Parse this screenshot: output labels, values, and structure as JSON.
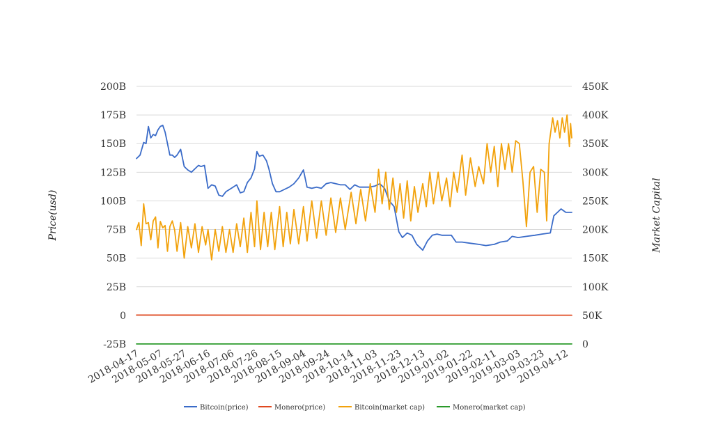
{
  "chart_data": {
    "type": "line",
    "title": "",
    "ylabel_left": "Price(usd)",
    "ylabel_right": "Market Capital",
    "left_axis": {
      "ticks": [
        "-25B",
        "0",
        "25B",
        "50B",
        "75B",
        "100B",
        "125B",
        "150B",
        "175B",
        "200B"
      ],
      "tick_values": [
        -25,
        0,
        25,
        50,
        75,
        100,
        125,
        150,
        175,
        200
      ],
      "ylim": [
        -25,
        200
      ]
    },
    "right_axis": {
      "ticks": [
        "0",
        "50K",
        "100K",
        "150K",
        "200K",
        "250K",
        "300K",
        "350K",
        "400K",
        "450K"
      ],
      "tick_values": [
        0,
        50,
        100,
        150,
        200,
        250,
        300,
        350,
        400,
        450
      ],
      "ylim": [
        0,
        450
      ]
    },
    "x_axis": {
      "tick_labels": [
        "2018-04-17",
        "2018-05-07",
        "2018-05-27",
        "2018-06-16",
        "2018-07-06",
        "2018-07-26",
        "2018-08-15",
        "2018-09-04",
        "2018-09-24",
        "2018-10-14",
        "2018-11-03",
        "2018-11-23",
        "2018-12-13",
        "2019-01-02",
        "2019-01-22",
        "2019-02-11",
        "2019-03-03",
        "2019-03-23",
        "2019-04-12"
      ],
      "start": "2018-04-17",
      "end": "2019-04-17"
    },
    "grid": true,
    "legend_position": "bottom",
    "series": [
      {
        "name": "Bitcoin(price)",
        "axis": "left",
        "color": "#3a6bc8",
        "points": [
          [
            "2018-04-17",
            137
          ],
          [
            "2018-04-20",
            140
          ],
          [
            "2018-04-23",
            151
          ],
          [
            "2018-04-25",
            150
          ],
          [
            "2018-04-27",
            165
          ],
          [
            "2018-04-29",
            155
          ],
          [
            "2018-05-01",
            158
          ],
          [
            "2018-05-03",
            157
          ],
          [
            "2018-05-05",
            162
          ],
          [
            "2018-05-07",
            165
          ],
          [
            "2018-05-09",
            166
          ],
          [
            "2018-05-11",
            160
          ],
          [
            "2018-05-13",
            150
          ],
          [
            "2018-05-15",
            140
          ],
          [
            "2018-05-17",
            140
          ],
          [
            "2018-05-19",
            138
          ],
          [
            "2018-05-21",
            140
          ],
          [
            "2018-05-24",
            145
          ],
          [
            "2018-05-27",
            130
          ],
          [
            "2018-05-30",
            127
          ],
          [
            "2018-06-02",
            125
          ],
          [
            "2018-06-05",
            128
          ],
          [
            "2018-06-08",
            131
          ],
          [
            "2018-06-10",
            130
          ],
          [
            "2018-06-13",
            131
          ],
          [
            "2018-06-16",
            111
          ],
          [
            "2018-06-19",
            114
          ],
          [
            "2018-06-22",
            113
          ],
          [
            "2018-06-25",
            105
          ],
          [
            "2018-06-28",
            104
          ],
          [
            "2018-07-01",
            108
          ],
          [
            "2018-07-04",
            110
          ],
          [
            "2018-07-07",
            112
          ],
          [
            "2018-07-10",
            114
          ],
          [
            "2018-07-13",
            107
          ],
          [
            "2018-07-16",
            108
          ],
          [
            "2018-07-19",
            116
          ],
          [
            "2018-07-22",
            120
          ],
          [
            "2018-07-25",
            128
          ],
          [
            "2018-07-27",
            143
          ],
          [
            "2018-07-29",
            139
          ],
          [
            "2018-08-01",
            140
          ],
          [
            "2018-08-04",
            135
          ],
          [
            "2018-08-06",
            128
          ],
          [
            "2018-08-09",
            115
          ],
          [
            "2018-08-12",
            108
          ],
          [
            "2018-08-15",
            108
          ],
          [
            "2018-08-19",
            110
          ],
          [
            "2018-08-23",
            112
          ],
          [
            "2018-08-27",
            115
          ],
          [
            "2018-08-31",
            120
          ],
          [
            "2018-09-04",
            127
          ],
          [
            "2018-09-07",
            112
          ],
          [
            "2018-09-11",
            111
          ],
          [
            "2018-09-15",
            112
          ],
          [
            "2018-09-19",
            111
          ],
          [
            "2018-09-23",
            115
          ],
          [
            "2018-09-27",
            116
          ],
          [
            "2018-10-01",
            115
          ],
          [
            "2018-10-05",
            114
          ],
          [
            "2018-10-09",
            114
          ],
          [
            "2018-10-13",
            110
          ],
          [
            "2018-10-17",
            114
          ],
          [
            "2018-10-21",
            112
          ],
          [
            "2018-10-25",
            112
          ],
          [
            "2018-10-29",
            112
          ],
          [
            "2018-11-03",
            113
          ],
          [
            "2018-11-07",
            115
          ],
          [
            "2018-11-11",
            111
          ],
          [
            "2018-11-15",
            100
          ],
          [
            "2018-11-19",
            95
          ],
          [
            "2018-11-23",
            73
          ],
          [
            "2018-11-26",
            68
          ],
          [
            "2018-11-30",
            72
          ],
          [
            "2018-12-04",
            70
          ],
          [
            "2018-12-08",
            62
          ],
          [
            "2018-12-13",
            57
          ],
          [
            "2018-12-17",
            65
          ],
          [
            "2018-12-21",
            70
          ],
          [
            "2018-12-25",
            71
          ],
          [
            "2018-12-29",
            70
          ],
          [
            "2019-01-02",
            70
          ],
          [
            "2019-01-06",
            70
          ],
          [
            "2019-01-10",
            64
          ],
          [
            "2019-01-15",
            64
          ],
          [
            "2019-01-22",
            63
          ],
          [
            "2019-01-29",
            62
          ],
          [
            "2019-02-04",
            61
          ],
          [
            "2019-02-11",
            62
          ],
          [
            "2019-02-16",
            64
          ],
          [
            "2019-02-22",
            65
          ],
          [
            "2019-02-26",
            69
          ],
          [
            "2019-03-03",
            68
          ],
          [
            "2019-03-10",
            69
          ],
          [
            "2019-03-17",
            70
          ],
          [
            "2019-03-23",
            71
          ],
          [
            "2019-03-30",
            72
          ],
          [
            "2019-04-02",
            87
          ],
          [
            "2019-04-05",
            90
          ],
          [
            "2019-04-08",
            93
          ],
          [
            "2019-04-12",
            90
          ],
          [
            "2019-04-17",
            90
          ]
        ]
      },
      {
        "name": "Monero(price)",
        "axis": "left",
        "color": "#e0481f",
        "points": [
          [
            "2018-04-17",
            0.3
          ],
          [
            "2018-10-14",
            0.2
          ],
          [
            "2019-04-17",
            0.2
          ]
        ]
      },
      {
        "name": "Bitcoin(market cap)",
        "axis": "right",
        "color": "#f2a20c",
        "points": [
          [
            "2018-04-17",
            200
          ],
          [
            "2018-04-19",
            212
          ],
          [
            "2018-04-21",
            172
          ],
          [
            "2018-04-23",
            245
          ],
          [
            "2018-04-25",
            210
          ],
          [
            "2018-04-27",
            212
          ],
          [
            "2018-04-29",
            182
          ],
          [
            "2018-05-01",
            215
          ],
          [
            "2018-05-03",
            222
          ],
          [
            "2018-05-05",
            168
          ],
          [
            "2018-05-07",
            214
          ],
          [
            "2018-05-09",
            203
          ],
          [
            "2018-05-11",
            207
          ],
          [
            "2018-05-13",
            162
          ],
          [
            "2018-05-15",
            205
          ],
          [
            "2018-05-17",
            215
          ],
          [
            "2018-05-19",
            199
          ],
          [
            "2018-05-21",
            162
          ],
          [
            "2018-05-24",
            212
          ],
          [
            "2018-05-27",
            150
          ],
          [
            "2018-05-30",
            205
          ],
          [
            "2018-06-02",
            168
          ],
          [
            "2018-06-05",
            210
          ],
          [
            "2018-06-08",
            160
          ],
          [
            "2018-06-11",
            205
          ],
          [
            "2018-06-14",
            173
          ],
          [
            "2018-06-16",
            200
          ],
          [
            "2018-06-19",
            147
          ],
          [
            "2018-06-22",
            200
          ],
          [
            "2018-06-25",
            162
          ],
          [
            "2018-06-28",
            205
          ],
          [
            "2018-07-01",
            160
          ],
          [
            "2018-07-04",
            200
          ],
          [
            "2018-07-07",
            160
          ],
          [
            "2018-07-10",
            210
          ],
          [
            "2018-07-13",
            170
          ],
          [
            "2018-07-16",
            220
          ],
          [
            "2018-07-19",
            160
          ],
          [
            "2018-07-22",
            230
          ],
          [
            "2018-07-25",
            170
          ],
          [
            "2018-07-27",
            250
          ],
          [
            "2018-07-30",
            165
          ],
          [
            "2018-08-02",
            230
          ],
          [
            "2018-08-05",
            170
          ],
          [
            "2018-08-08",
            230
          ],
          [
            "2018-08-11",
            165
          ],
          [
            "2018-08-15",
            240
          ],
          [
            "2018-08-18",
            170
          ],
          [
            "2018-08-21",
            230
          ],
          [
            "2018-08-24",
            175
          ],
          [
            "2018-08-27",
            235
          ],
          [
            "2018-08-31",
            175
          ],
          [
            "2018-09-04",
            240
          ],
          [
            "2018-09-07",
            180
          ],
          [
            "2018-09-11",
            250
          ],
          [
            "2018-09-15",
            185
          ],
          [
            "2018-09-19",
            250
          ],
          [
            "2018-09-23",
            190
          ],
          [
            "2018-09-27",
            255
          ],
          [
            "2018-10-01",
            195
          ],
          [
            "2018-10-05",
            255
          ],
          [
            "2018-10-09",
            200
          ],
          [
            "2018-10-14",
            265
          ],
          [
            "2018-10-18",
            210
          ],
          [
            "2018-10-22",
            270
          ],
          [
            "2018-10-26",
            215
          ],
          [
            "2018-10-30",
            280
          ],
          [
            "2018-11-03",
            230
          ],
          [
            "2018-11-06",
            305
          ],
          [
            "2018-11-09",
            245
          ],
          [
            "2018-11-12",
            300
          ],
          [
            "2018-11-15",
            235
          ],
          [
            "2018-11-18",
            290
          ],
          [
            "2018-11-21",
            230
          ],
          [
            "2018-11-24",
            280
          ],
          [
            "2018-11-27",
            220
          ],
          [
            "2018-11-30",
            285
          ],
          [
            "2018-12-03",
            215
          ],
          [
            "2018-12-06",
            275
          ],
          [
            "2018-12-09",
            230
          ],
          [
            "2018-12-13",
            280
          ],
          [
            "2018-12-16",
            240
          ],
          [
            "2018-12-19",
            300
          ],
          [
            "2018-12-22",
            245
          ],
          [
            "2018-12-26",
            300
          ],
          [
            "2018-12-29",
            250
          ],
          [
            "2019-01-02",
            290
          ],
          [
            "2019-01-05",
            240
          ],
          [
            "2019-01-08",
            300
          ],
          [
            "2019-01-11",
            265
          ],
          [
            "2019-01-15",
            330
          ],
          [
            "2019-01-18",
            260
          ],
          [
            "2019-01-22",
            325
          ],
          [
            "2019-01-26",
            275
          ],
          [
            "2019-01-29",
            310
          ],
          [
            "2019-02-02",
            280
          ],
          [
            "2019-02-05",
            350
          ],
          [
            "2019-02-08",
            300
          ],
          [
            "2019-02-11",
            345
          ],
          [
            "2019-02-14",
            275
          ],
          [
            "2019-02-17",
            350
          ],
          [
            "2019-02-20",
            305
          ],
          [
            "2019-02-23",
            350
          ],
          [
            "2019-02-26",
            300
          ],
          [
            "2019-03-01",
            355
          ],
          [
            "2019-03-04",
            350
          ],
          [
            "2019-03-07",
            285
          ],
          [
            "2019-03-10",
            205
          ],
          [
            "2019-03-13",
            300
          ],
          [
            "2019-03-16",
            310
          ],
          [
            "2019-03-19",
            230
          ],
          [
            "2019-03-22",
            305
          ],
          [
            "2019-03-25",
            300
          ],
          [
            "2019-03-27",
            215
          ],
          [
            "2019-03-29",
            350
          ],
          [
            "2019-04-01",
            395
          ],
          [
            "2019-04-03",
            370
          ],
          [
            "2019-04-05",
            390
          ],
          [
            "2019-04-07",
            360
          ],
          [
            "2019-04-09",
            395
          ],
          [
            "2019-04-11",
            370
          ],
          [
            "2019-04-13",
            400
          ],
          [
            "2019-04-15",
            345
          ],
          [
            "2019-04-16",
            385
          ],
          [
            "2019-04-17",
            360
          ]
        ]
      },
      {
        "name": "Monero(market cap)",
        "axis": "right",
        "color": "#2a9a2a",
        "points": [
          [
            "2018-04-17",
            0.1
          ],
          [
            "2018-10-14",
            0.1
          ],
          [
            "2019-04-17",
            0.1
          ]
        ]
      }
    ]
  }
}
